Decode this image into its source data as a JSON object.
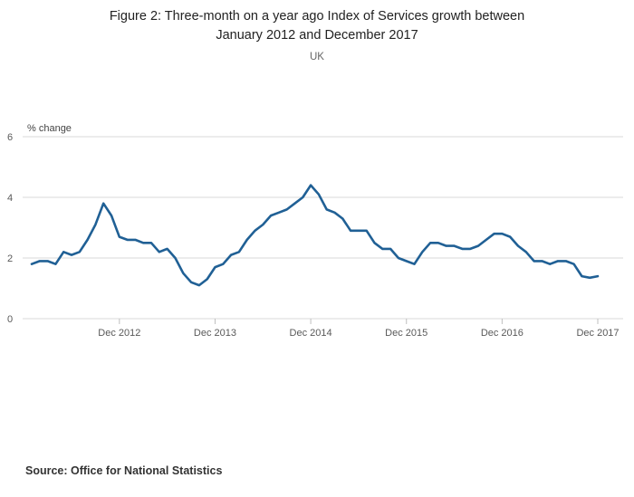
{
  "page": {
    "title_line1": "Figure 2: Three-month on a year ago Index of Services growth between",
    "title_line2": "January 2012 and December 2017",
    "subtitle": "UK",
    "source": "Source: Office for National Statistics"
  },
  "chart_data": {
    "type": "line",
    "title": "Figure 2: Three-month on a year ago Index of Services growth between January 2012 and December 2017",
    "subtitle": "UK",
    "xlabel": "",
    "ylabel": "% change",
    "ylim": [
      0,
      6
    ],
    "yticks": [
      0,
      2,
      4,
      6
    ],
    "grid": true,
    "legend_position": "none",
    "x_start": "Jan 2012",
    "x_end": "Dec 2017",
    "x_frequency": "monthly",
    "xtick_labels": [
      "Dec 2012",
      "Dec 2013",
      "Dec 2014",
      "Dec 2015",
      "Dec 2016",
      "Dec 2017"
    ],
    "xtick_indices": [
      11,
      23,
      35,
      47,
      59,
      71
    ],
    "series": [
      {
        "name": "Index of Services growth, three-month on a year ago (UK)",
        "color": "#206095",
        "values": [
          1.8,
          1.9,
          1.9,
          1.8,
          2.2,
          2.1,
          2.2,
          2.6,
          3.1,
          3.8,
          3.4,
          2.7,
          2.6,
          2.6,
          2.5,
          2.5,
          2.2,
          2.3,
          2.0,
          1.5,
          1.2,
          1.1,
          1.3,
          1.7,
          1.8,
          2.1,
          2.2,
          2.6,
          2.9,
          3.1,
          3.4,
          3.5,
          3.6,
          3.8,
          4.0,
          4.4,
          4.1,
          3.6,
          3.5,
          3.3,
          2.9,
          2.9,
          2.9,
          2.5,
          2.3,
          2.3,
          2.0,
          1.9,
          1.8,
          2.2,
          2.5,
          2.5,
          2.4,
          2.4,
          2.3,
          2.3,
          2.4,
          2.6,
          2.8,
          2.8,
          2.7,
          2.4,
          2.2,
          1.9,
          1.9,
          1.8,
          1.9,
          1.9,
          1.8,
          1.4,
          1.35,
          1.4
        ]
      }
    ],
    "style": {
      "gridline_color": "#d9d9d9",
      "tick_color": "#bfbfbf",
      "tick_label_color": "#595959",
      "line_width": 2.6
    }
  }
}
